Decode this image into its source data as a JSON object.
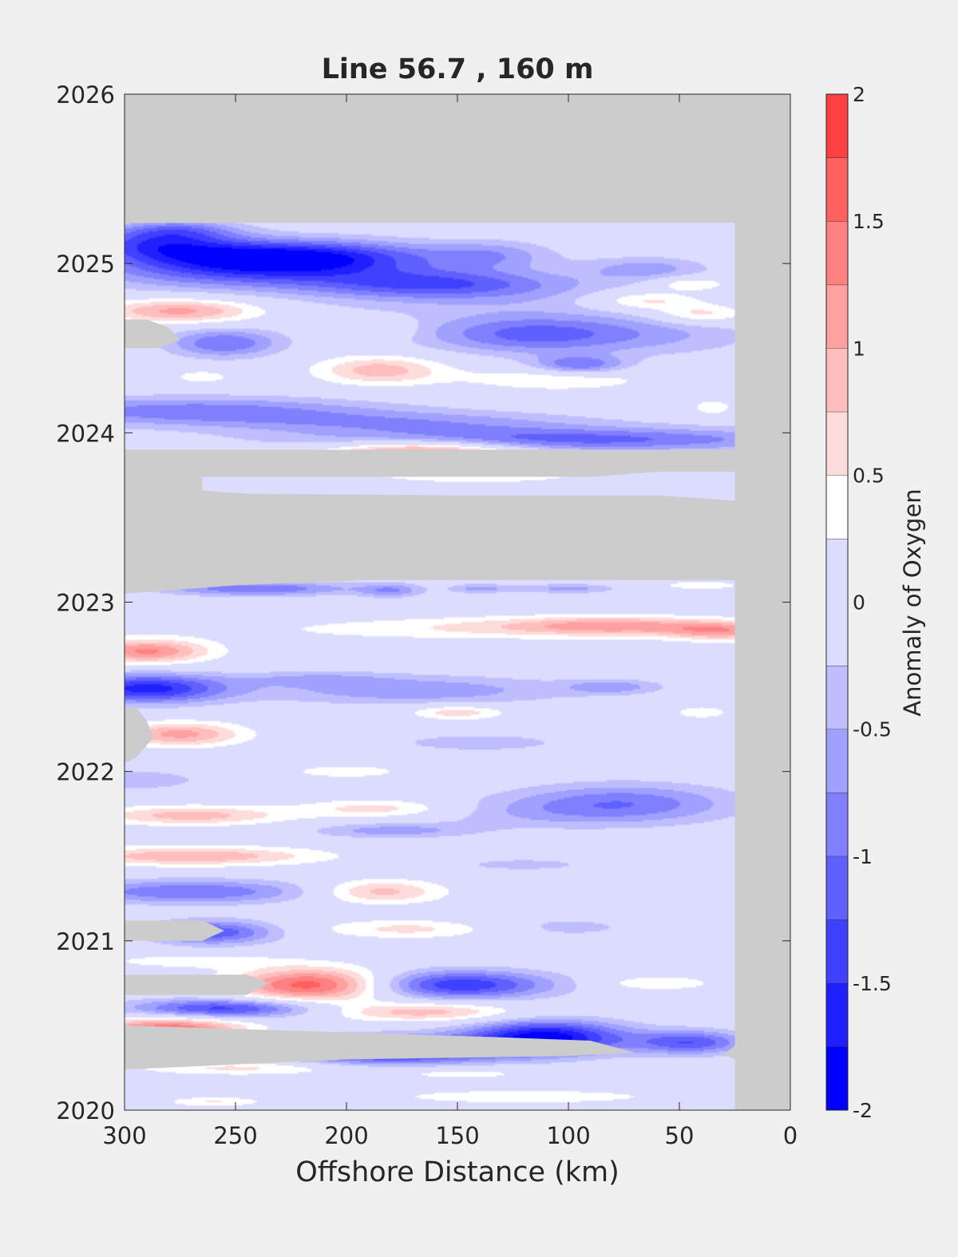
{
  "chart_data": {
    "type": "heatmap",
    "title": "Line 56.7 , 160 m",
    "xlabel": "Offshore Distance (km)",
    "ylabel": "",
    "xlim": [
      300,
      0
    ],
    "ylim": [
      2020,
      2026
    ],
    "x_ticks": [
      300,
      250,
      200,
      150,
      100,
      50,
      0
    ],
    "y_ticks": [
      2020,
      2021,
      2022,
      2023,
      2024,
      2025,
      2026
    ],
    "colorbar": {
      "label": "Anomaly of Oxygen",
      "range": [
        -2,
        2
      ],
      "ticks": [
        2,
        1.5,
        1,
        0.5,
        0,
        -0.5,
        -1,
        -1.5,
        -2
      ],
      "levels": [
        -2,
        -1.75,
        -1.5,
        -1.25,
        -1,
        -0.75,
        -0.5,
        -0.25,
        0.25,
        0.5,
        0.75,
        1,
        1.25,
        1.5,
        1.75,
        2
      ],
      "colors": [
        "#0000ff",
        "#2020ff",
        "#4040ff",
        "#6060ff",
        "#8080ff",
        "#a0a0ff",
        "#bebeff",
        "#dcdcff",
        "#ffffff",
        "#ffdcdc",
        "#ffbebe",
        "#ffa0a0",
        "#ff8080",
        "#ff6060",
        "#ff4040",
        "#ff2020",
        "#ff0000"
      ]
    },
    "nodata_color": "#cccccc",
    "features": [
      {
        "x": 225,
        "y": 2025.04,
        "sx": 42,
        "sy": 0.07,
        "v": -1.75
      },
      {
        "x": 285,
        "y": 2025.12,
        "sx": 25,
        "sy": 0.07,
        "v": -1.2
      },
      {
        "x": 275,
        "y": 2025.2,
        "sx": 18,
        "sy": 0.04,
        "v": -0.6
      },
      {
        "x": 250,
        "y": 2024.95,
        "sx": 50,
        "sy": 0.08,
        "v": -0.9
      },
      {
        "x": 135,
        "y": 2025.05,
        "sx": 20,
        "sy": 0.06,
        "v": -0.6
      },
      {
        "x": 65,
        "y": 2024.97,
        "sx": 20,
        "sy": 0.05,
        "v": -0.6
      },
      {
        "x": 160,
        "y": 2024.88,
        "sx": 40,
        "sy": 0.06,
        "v": -1.0
      },
      {
        "x": 140,
        "y": 2024.8,
        "sx": 60,
        "sy": 0.1,
        "v": -0.35
      },
      {
        "x": 275,
        "y": 2024.72,
        "sx": 25,
        "sy": 0.05,
        "v": 1.1
      },
      {
        "x": 180,
        "y": 2024.62,
        "sx": 8,
        "sy": 0.04,
        "v": 0.4
      },
      {
        "x": 45,
        "y": 2024.88,
        "sx": 12,
        "sy": 0.03,
        "v": 0.6
      },
      {
        "x": 65,
        "y": 2024.78,
        "sx": 18,
        "sy": 0.04,
        "v": 0.7
      },
      {
        "x": 40,
        "y": 2024.7,
        "sx": 15,
        "sy": 0.04,
        "v": 0.7
      },
      {
        "x": 115,
        "y": 2024.58,
        "sx": 35,
        "sy": 0.08,
        "v": -1.1
      },
      {
        "x": 50,
        "y": 2024.58,
        "sx": 30,
        "sy": 0.09,
        "v": -0.35
      },
      {
        "x": 255,
        "y": 2024.53,
        "sx": 18,
        "sy": 0.06,
        "v": -1.0
      },
      {
        "x": 185,
        "y": 2024.37,
        "sx": 20,
        "sy": 0.06,
        "v": 0.9
      },
      {
        "x": 95,
        "y": 2024.4,
        "sx": 15,
        "sy": 0.04,
        "v": -1.0
      },
      {
        "x": 105,
        "y": 2024.32,
        "sx": 30,
        "sy": 0.05,
        "v": 0.5
      },
      {
        "x": 265,
        "y": 2024.33,
        "sx": 10,
        "sy": 0.03,
        "v": 0.4
      },
      {
        "x": 270,
        "y": 2024.13,
        "sx": 60,
        "sy": 0.06,
        "v": -0.9
      },
      {
        "x": 170,
        "y": 2024.06,
        "sx": 60,
        "sy": 0.05,
        "v": -0.6
      },
      {
        "x": 100,
        "y": 2023.96,
        "sx": 80,
        "sy": 0.05,
        "v": -1.1
      },
      {
        "x": 165,
        "y": 2023.88,
        "sx": 30,
        "sy": 0.05,
        "v": 1.6
      },
      {
        "x": 140,
        "y": 2023.75,
        "sx": 40,
        "sy": 0.04,
        "v": 0.4
      },
      {
        "x": 35,
        "y": 2024.15,
        "sx": 6,
        "sy": 0.03,
        "v": 0.5
      },
      {
        "x": 240,
        "y": 2023.08,
        "sx": 30,
        "sy": 0.03,
        "v": -1.0
      },
      {
        "x": 180,
        "y": 2023.07,
        "sx": 10,
        "sy": 0.03,
        "v": -0.7
      },
      {
        "x": 140,
        "y": 2023.08,
        "sx": 10,
        "sy": 0.02,
        "v": -0.6
      },
      {
        "x": 100,
        "y": 2023.08,
        "sx": 15,
        "sy": 0.02,
        "v": -0.6
      },
      {
        "x": 40,
        "y": 2023.1,
        "sx": 15,
        "sy": 0.02,
        "v": 0.4
      },
      {
        "x": 75,
        "y": 2022.86,
        "sx": 30,
        "sy": 0.04,
        "v": 0.8
      },
      {
        "x": 30,
        "y": 2022.83,
        "sx": 18,
        "sy": 0.04,
        "v": 1.0
      },
      {
        "x": 160,
        "y": 2022.84,
        "sx": 70,
        "sy": 0.05,
        "v": 0.35
      },
      {
        "x": 110,
        "y": 2022.86,
        "sx": 40,
        "sy": 0.04,
        "v": 0.35
      },
      {
        "x": 290,
        "y": 2022.71,
        "sx": 20,
        "sy": 0.05,
        "v": 1.3
      },
      {
        "x": 290,
        "y": 2022.49,
        "sx": 25,
        "sy": 0.06,
        "v": -1.6
      },
      {
        "x": 170,
        "y": 2022.48,
        "sx": 50,
        "sy": 0.06,
        "v": -0.7
      },
      {
        "x": 80,
        "y": 2022.5,
        "sx": 15,
        "sy": 0.03,
        "v": -0.6
      },
      {
        "x": 215,
        "y": 2022.55,
        "sx": 25,
        "sy": 0.03,
        "v": -0.4
      },
      {
        "x": 150,
        "y": 2022.35,
        "sx": 15,
        "sy": 0.03,
        "v": 0.7
      },
      {
        "x": 40,
        "y": 2022.35,
        "sx": 10,
        "sy": 0.03,
        "v": 0.4
      },
      {
        "x": 275,
        "y": 2022.22,
        "sx": 20,
        "sy": 0.05,
        "v": 1.1
      },
      {
        "x": 140,
        "y": 2022.17,
        "sx": 30,
        "sy": 0.04,
        "v": -0.4
      },
      {
        "x": 295,
        "y": 2021.95,
        "sx": 20,
        "sy": 0.04,
        "v": -0.5
      },
      {
        "x": 200,
        "y": 2022.0,
        "sx": 20,
        "sy": 0.03,
        "v": 0.4
      },
      {
        "x": 270,
        "y": 2021.74,
        "sx": 30,
        "sy": 0.04,
        "v": 0.9
      },
      {
        "x": 185,
        "y": 2021.78,
        "sx": 25,
        "sy": 0.04,
        "v": 0.7
      },
      {
        "x": 75,
        "y": 2021.82,
        "sx": 35,
        "sy": 0.08,
        "v": -0.85
      },
      {
        "x": 115,
        "y": 2021.75,
        "sx": 50,
        "sy": 0.07,
        "v": -0.35
      },
      {
        "x": 180,
        "y": 2021.65,
        "sx": 25,
        "sy": 0.03,
        "v": -0.6
      },
      {
        "x": 270,
        "y": 2021.5,
        "sx": 40,
        "sy": 0.04,
        "v": 1.0
      },
      {
        "x": 270,
        "y": 2021.29,
        "sx": 40,
        "sy": 0.05,
        "v": -1.0
      },
      {
        "x": 185,
        "y": 2021.29,
        "sx": 20,
        "sy": 0.05,
        "v": 0.9
      },
      {
        "x": 120,
        "y": 2021.45,
        "sx": 25,
        "sy": 0.03,
        "v": -0.35
      },
      {
        "x": 260,
        "y": 2021.05,
        "sx": 20,
        "sy": 0.05,
        "v": -1.2
      },
      {
        "x": 170,
        "y": 2021.07,
        "sx": 30,
        "sy": 0.04,
        "v": 0.6
      },
      {
        "x": 105,
        "y": 2021.08,
        "sx": 30,
        "sy": 0.05,
        "v": -0.35
      },
      {
        "x": 215,
        "y": 2020.74,
        "sx": 25,
        "sy": 0.07,
        "v": 1.7
      },
      {
        "x": 150,
        "y": 2020.74,
        "sx": 30,
        "sy": 0.06,
        "v": -1.5
      },
      {
        "x": 270,
        "y": 2020.88,
        "sx": 30,
        "sy": 0.03,
        "v": 0.4
      },
      {
        "x": 60,
        "y": 2020.75,
        "sx": 18,
        "sy": 0.03,
        "v": 0.5
      },
      {
        "x": 255,
        "y": 2020.6,
        "sx": 30,
        "sy": 0.04,
        "v": -1.4
      },
      {
        "x": 165,
        "y": 2020.58,
        "sx": 30,
        "sy": 0.04,
        "v": 0.9
      },
      {
        "x": 280,
        "y": 2020.48,
        "sx": 25,
        "sy": 0.05,
        "v": 1.5
      },
      {
        "x": 110,
        "y": 2020.43,
        "sx": 25,
        "sy": 0.07,
        "v": -1.9
      },
      {
        "x": 180,
        "y": 2020.35,
        "sx": 35,
        "sy": 0.06,
        "v": -1.6
      },
      {
        "x": 45,
        "y": 2020.4,
        "sx": 18,
        "sy": 0.05,
        "v": -1.2
      },
      {
        "x": 245,
        "y": 2020.25,
        "sx": 35,
        "sy": 0.03,
        "v": 0.6
      },
      {
        "x": 150,
        "y": 2020.22,
        "sx": 30,
        "sy": 0.03,
        "v": 0.4
      },
      {
        "x": 120,
        "y": 2020.08,
        "sx": 60,
        "sy": 0.04,
        "v": 0.35
      },
      {
        "x": 260,
        "y": 2020.05,
        "sx": 15,
        "sy": 0.02,
        "v": 0.5
      }
    ],
    "nodata_regions": [
      [
        [
          300,
          2026
        ],
        [
          0,
          2026
        ],
        [
          0,
          2020
        ],
        [
          25,
          2020
        ],
        [
          25,
          2025.24
        ],
        [
          300,
          2025.24
        ]
      ],
      [
        [
          300,
          2023.9
        ],
        [
          25,
          2023.9
        ],
        [
          25,
          2023.77
        ],
        [
          60,
          2023.77
        ],
        [
          90,
          2023.74
        ],
        [
          300,
          2023.74
        ]
      ],
      [
        [
          300,
          2023.74
        ],
        [
          265,
          2023.74
        ],
        [
          265,
          2023.66
        ],
        [
          245,
          2023.64
        ],
        [
          150,
          2023.63
        ],
        [
          60,
          2023.63
        ],
        [
          25,
          2023.6
        ],
        [
          25,
          2023.13
        ],
        [
          190,
          2023.13
        ],
        [
          250,
          2023.1
        ],
        [
          300,
          2023.05
        ]
      ],
      [
        [
          300,
          2024.67
        ],
        [
          290,
          2024.67
        ],
        [
          280,
          2024.62
        ],
        [
          275,
          2024.55
        ],
        [
          285,
          2024.5
        ],
        [
          300,
          2024.5
        ]
      ],
      [
        [
          300,
          2022.38
        ],
        [
          295,
          2022.38
        ],
        [
          290,
          2022.3
        ],
        [
          287,
          2022.2
        ],
        [
          295,
          2022.08
        ],
        [
          300,
          2022.05
        ]
      ],
      [
        [
          300,
          2021.12
        ],
        [
          265,
          2021.12
        ],
        [
          255,
          2021.06
        ],
        [
          265,
          2021.0
        ],
        [
          300,
          2021.0
        ]
      ],
      [
        [
          300,
          2020.8
        ],
        [
          245,
          2020.8
        ],
        [
          235,
          2020.75
        ],
        [
          245,
          2020.68
        ],
        [
          300,
          2020.68
        ]
      ],
      [
        [
          300,
          2020.5
        ],
        [
          130,
          2020.43
        ],
        [
          90,
          2020.41
        ],
        [
          70,
          2020.34
        ],
        [
          100,
          2020.32
        ],
        [
          200,
          2020.3
        ],
        [
          300,
          2020.24
        ]
      ],
      [
        [
          25,
          2020.38
        ],
        [
          30,
          2020.33
        ],
        [
          25,
          2020.3
        ]
      ]
    ]
  }
}
